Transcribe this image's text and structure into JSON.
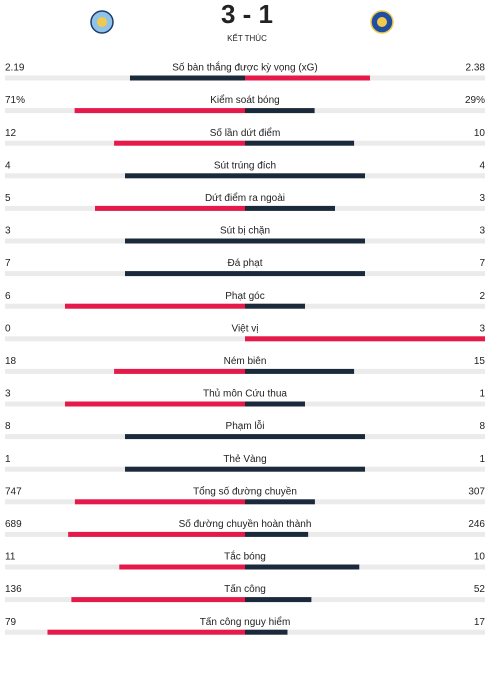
{
  "header": {
    "score": "3 - 1",
    "status": "KẾT THÚC"
  },
  "colors": {
    "leading": "#e51a4b",
    "trailing": "#1b2a3b",
    "track": "#ebebeb"
  },
  "rows": [
    {
      "label": "Số bàn thắng được kỳ vọng (xG)",
      "home": 2.19,
      "away": 2.38
    },
    {
      "label": "Kiểm soát bóng",
      "home": 71,
      "away": 29,
      "home_label": "71%",
      "away_label": "29%"
    },
    {
      "label": "Số lần dứt điểm",
      "home": 12,
      "away": 10
    },
    {
      "label": "Sút trúng đích",
      "home": 4,
      "away": 4
    },
    {
      "label": "Dứt điểm ra ngoài",
      "home": 5,
      "away": 3
    },
    {
      "label": "Sút bị chặn",
      "home": 3,
      "away": 3
    },
    {
      "label": "Đá phạt",
      "home": 7,
      "away": 7
    },
    {
      "label": "Phạt góc",
      "home": 6,
      "away": 2
    },
    {
      "label": "Việt vị",
      "home": 0,
      "away": 3
    },
    {
      "label": "Ném biên",
      "home": 18,
      "away": 15
    },
    {
      "label": "Thủ môn Cứu thua",
      "home": 3,
      "away": 1
    },
    {
      "label": "Phạm lỗi",
      "home": 8,
      "away": 8
    },
    {
      "label": "Thẻ Vàng",
      "home": 1,
      "away": 1
    },
    {
      "label": "Tổng số đường chuyền",
      "home": 747,
      "away": 307
    },
    {
      "label": "Số đường chuyền hoàn thành",
      "home": 689,
      "away": 246
    },
    {
      "label": "Tắc bóng",
      "home": 11,
      "away": 10
    },
    {
      "label": "Tấn công",
      "home": 136,
      "away": 52
    },
    {
      "label": "Tấn công nguy hiểm",
      "home": 79,
      "away": 17
    }
  ]
}
